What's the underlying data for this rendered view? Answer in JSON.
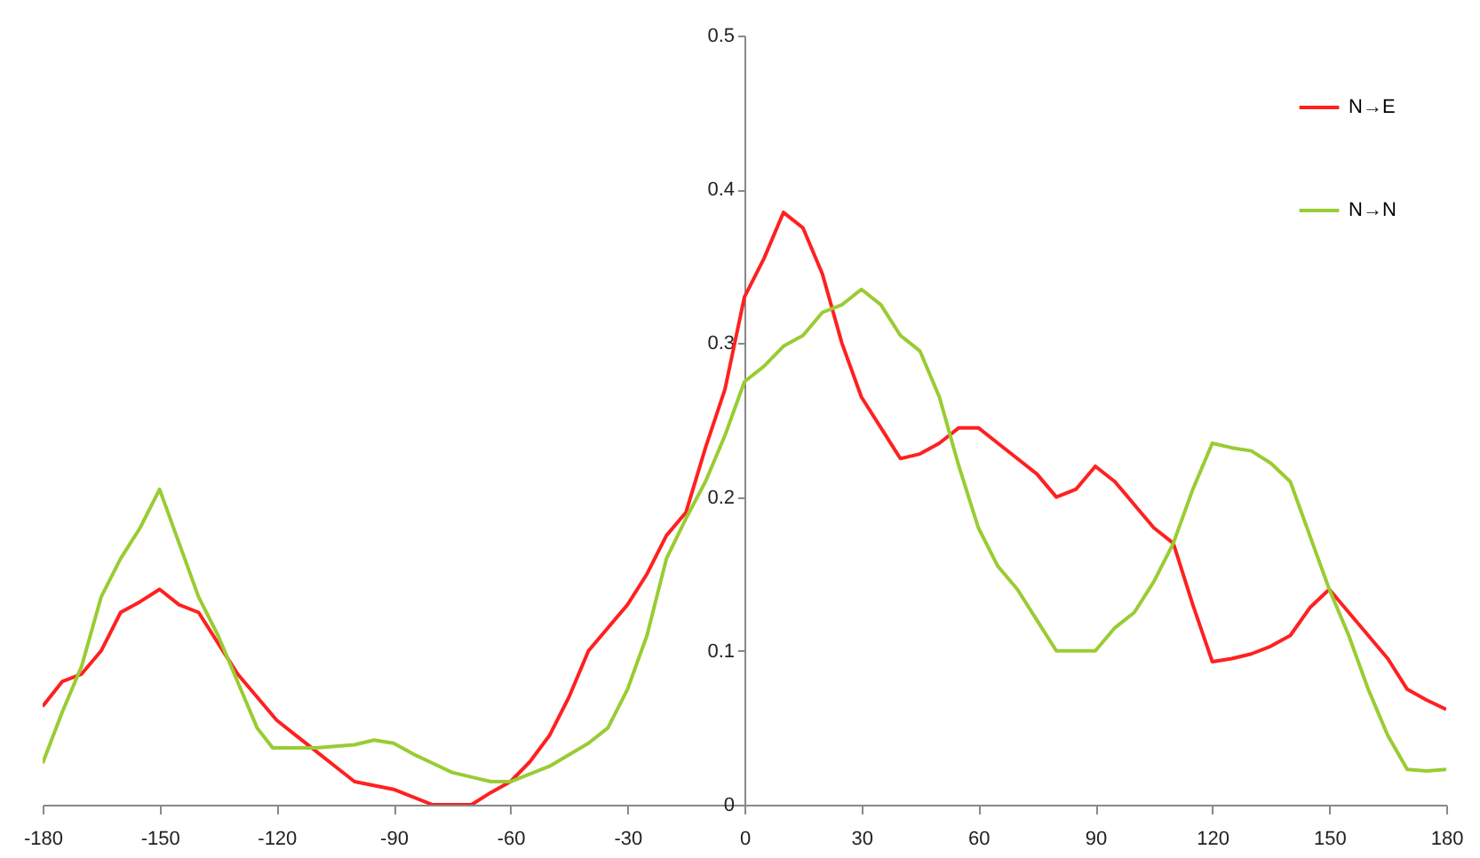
{
  "chart_data": {
    "type": "line",
    "xlim": [
      -180,
      180
    ],
    "xticks": [
      -180,
      -150,
      -120,
      -90,
      -60,
      -30,
      0,
      30,
      60,
      90,
      120,
      150,
      180
    ],
    "ylim": [
      0,
      0.5
    ],
    "yticks": [
      0,
      0.1,
      0.2,
      0.3,
      0.4,
      0.5
    ],
    "grid": false,
    "legend": "top right",
    "marker": "none",
    "line_style": "solid",
    "series": [
      {
        "name": "N→E",
        "color": "#ff2020",
        "x": [
          -180,
          -175,
          -170,
          -165,
          -160,
          -155,
          -150,
          -145,
          -140,
          -135,
          -130,
          -125,
          -120,
          -115,
          -110,
          -105,
          -100,
          -90,
          -80,
          -70,
          -65,
          -60,
          -55,
          -50,
          -45,
          -40,
          -35,
          -30,
          -25,
          -20,
          -15,
          -10,
          -5,
          0,
          5,
          10,
          15,
          20,
          25,
          30,
          35,
          40,
          45,
          50,
          55,
          60,
          65,
          70,
          75,
          80,
          85,
          90,
          95,
          100,
          105,
          110,
          115,
          120,
          125,
          130,
          135,
          140,
          145,
          150,
          155,
          160,
          165,
          170,
          175,
          180
        ],
        "values": [
          0.064,
          0.08,
          0.085,
          0.1,
          0.125,
          0.132,
          0.14,
          0.13,
          0.125,
          0.105,
          0.085,
          0.07,
          0.055,
          0.045,
          0.035,
          0.025,
          0.015,
          0.01,
          0.0,
          0.0,
          0.008,
          0.015,
          0.028,
          0.045,
          0.07,
          0.1,
          0.115,
          0.13,
          0.15,
          0.175,
          0.19,
          0.232,
          0.27,
          0.33,
          0.355,
          0.385,
          0.375,
          0.345,
          0.3,
          0.265,
          0.245,
          0.225,
          0.228,
          0.235,
          0.245,
          0.245,
          0.235,
          0.225,
          0.215,
          0.2,
          0.205,
          0.22,
          0.21,
          0.195,
          0.18,
          0.17,
          0.13,
          0.093,
          0.095,
          0.098,
          0.103,
          0.11,
          0.128,
          0.14,
          0.125,
          0.11,
          0.095,
          0.075,
          0.068,
          0.062
        ]
      },
      {
        "name": "N→N",
        "color": "#99cc33",
        "x": [
          -180,
          -175,
          -170,
          -165,
          -160,
          -155,
          -150,
          -145,
          -140,
          -135,
          -130,
          -125,
          -121,
          -110,
          -100,
          -95,
          -90,
          -85,
          -80,
          -75,
          -70,
          -65,
          -60,
          -50,
          -40,
          -35,
          -30,
          -25,
          -20,
          -15,
          -10,
          -5,
          0,
          5,
          10,
          15,
          20,
          25,
          30,
          35,
          40,
          45,
          50,
          55,
          60,
          65,
          70,
          75,
          80,
          85,
          90,
          95,
          100,
          105,
          110,
          115,
          120,
          125,
          130,
          135,
          140,
          145,
          150,
          155,
          160,
          165,
          170,
          175,
          180
        ],
        "values": [
          0.027,
          0.06,
          0.09,
          0.135,
          0.16,
          0.18,
          0.205,
          0.17,
          0.135,
          0.11,
          0.08,
          0.05,
          0.037,
          0.037,
          0.039,
          0.042,
          0.04,
          0.033,
          0.027,
          0.021,
          0.018,
          0.015,
          0.015,
          0.025,
          0.04,
          0.05,
          0.075,
          0.11,
          0.16,
          0.186,
          0.21,
          0.24,
          0.275,
          0.285,
          0.298,
          0.305,
          0.32,
          0.325,
          0.335,
          0.325,
          0.305,
          0.295,
          0.265,
          0.22,
          0.18,
          0.155,
          0.14,
          0.12,
          0.1,
          0.1,
          0.1,
          0.115,
          0.125,
          0.145,
          0.17,
          0.205,
          0.235,
          0.232,
          0.23,
          0.222,
          0.21,
          0.175,
          0.14,
          0.11,
          0.075,
          0.045,
          0.023,
          0.022,
          0.023
        ]
      }
    ]
  }
}
